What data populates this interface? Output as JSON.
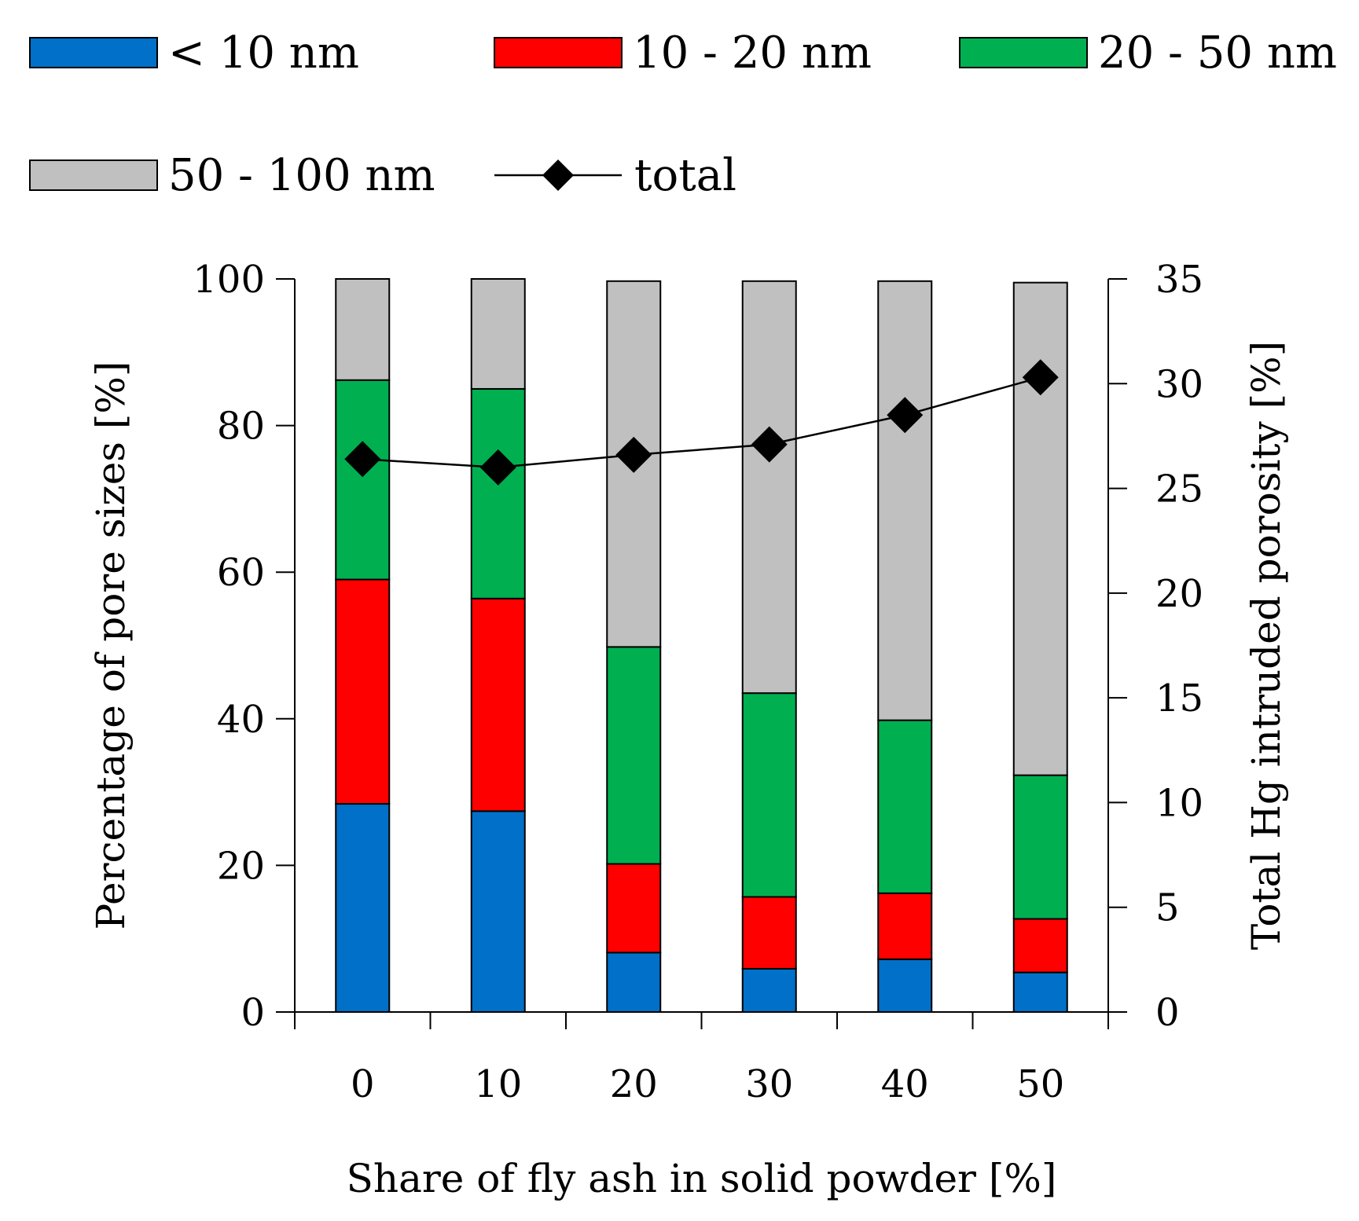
{
  "chart_data": {
    "type": "bar",
    "stacked": true,
    "categories": [
      "0",
      "10",
      "20",
      "30",
      "40",
      "50"
    ],
    "series": [
      {
        "name": "< 10 nm",
        "color": "#0070C8",
        "values": [
          28.4,
          27.4,
          8.1,
          5.9,
          7.2,
          5.4
        ]
      },
      {
        "name": "10 - 20 nm",
        "color": "#FF0000",
        "values": [
          30.6,
          29.0,
          12.1,
          9.8,
          9.0,
          7.3
        ]
      },
      {
        "name": "20 - 50 nm",
        "color": "#00B050",
        "values": [
          27.2,
          28.6,
          29.6,
          27.8,
          23.6,
          19.6
        ]
      },
      {
        "name": "50 - 100 nm",
        "color": "#C0C0C0",
        "values": [
          13.8,
          15.0,
          49.9,
          56.2,
          59.9,
          67.2
        ]
      }
    ],
    "line_series": {
      "name": "total",
      "color": "#000000",
      "axis": "right",
      "values": [
        26.4,
        26.0,
        26.6,
        27.1,
        28.5,
        30.3
      ]
    },
    "xlabel": "Share of fly ash in solid powder [%]",
    "ylabel": "Percentage of pore sizes [%]",
    "y2label": "Total Hg intruded porosity [%]",
    "ylim": [
      0,
      100
    ],
    "y2lim": [
      0,
      35
    ],
    "yticks": [
      "0",
      "20",
      "40",
      "60",
      "80",
      "100"
    ],
    "y2ticks": [
      "0",
      "5",
      "10",
      "15",
      "20",
      "25",
      "30",
      "35"
    ],
    "legend": {
      "position": "top",
      "entries": [
        "< 10 nm",
        "10 - 20 nm",
        "20 - 50 nm",
        "50 - 100 nm",
        "total"
      ]
    },
    "grid": false
  }
}
